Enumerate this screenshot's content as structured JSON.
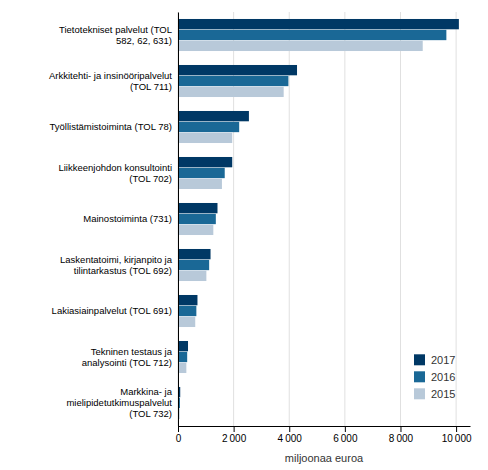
{
  "chart_data": {
    "type": "bar",
    "orientation": "horizontal",
    "categories": [
      "Markkina- ja\nmielipidetutkimuspalvelut\n(TOL 732)",
      "Tekninen testaus ja\nanalysointi (TOL 712)",
      "Lakiasiainpalvelut (TOL 691)",
      "Laskentatoimi, kirjanpito ja\ntilintarkastus (TOL 692)",
      "Mainostoiminta (731)",
      "Liikkeenjohdon konsultointi\n(TOL 702)",
      "Työllistämistoiminta (TOL 78)",
      "Arkkitehti- ja insinööripalvelut\n(TOL 711)",
      "Tietotekniset palvelut (TOL\n582, 62, 631)"
    ],
    "series": [
      {
        "name": "2017",
        "color": "#003865",
        "values": [
          80,
          360,
          700,
          1170,
          1420,
          1950,
          2550,
          4280,
          10100
        ]
      },
      {
        "name": "2016",
        "color": "#1a6896",
        "values": [
          70,
          330,
          660,
          1120,
          1360,
          1680,
          2200,
          3970,
          9650
        ]
      },
      {
        "name": "2015",
        "color": "#b8c9d9",
        "values": [
          60,
          300,
          620,
          1020,
          1270,
          1580,
          1950,
          3800,
          8800
        ]
      }
    ],
    "xlabel": "miljoonaa euroa",
    "xlim": [
      0,
      10500
    ],
    "xticks": [
      0,
      {
        "value": 2000,
        "label": "2 000"
      },
      {
        "value": 4000,
        "label": "4 000"
      },
      {
        "value": 6000,
        "label": "6 000"
      },
      {
        "value": 8000,
        "label": "8 000"
      },
      {
        "value": 10000,
        "label": "10 000"
      }
    ],
    "grid": true,
    "legend": "lower right"
  }
}
